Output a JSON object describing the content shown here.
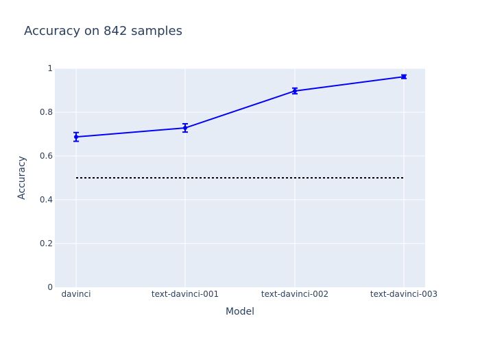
{
  "chart_data": {
    "type": "line",
    "title": "Accuracy on 842 samples",
    "xlabel": "Model",
    "ylabel": "Accuracy",
    "categories": [
      "davinci",
      "text-davinci-001",
      "text-davinci-002",
      "text-davinci-003"
    ],
    "series": [
      {
        "values": [
          0.687,
          0.728,
          0.897,
          0.962
        ],
        "error": [
          0.02,
          0.019,
          0.013,
          0.008
        ],
        "color": "#0000ff",
        "marker": "circle"
      }
    ],
    "reference_line": {
      "value": 0.5,
      "style": "dotted",
      "color": "#000000"
    },
    "ylim": [
      0,
      1
    ],
    "yticks": [
      0,
      0.2,
      0.4,
      0.6,
      0.8,
      1
    ],
    "ytick_labels": [
      "0",
      "0.2",
      "0.4",
      "0.6",
      "0.8",
      "1"
    ],
    "grid": true,
    "legend": "none",
    "background_color": "#e5ecf6",
    "grid_color": "#ffffff",
    "text_color": "#2a3f5f"
  }
}
